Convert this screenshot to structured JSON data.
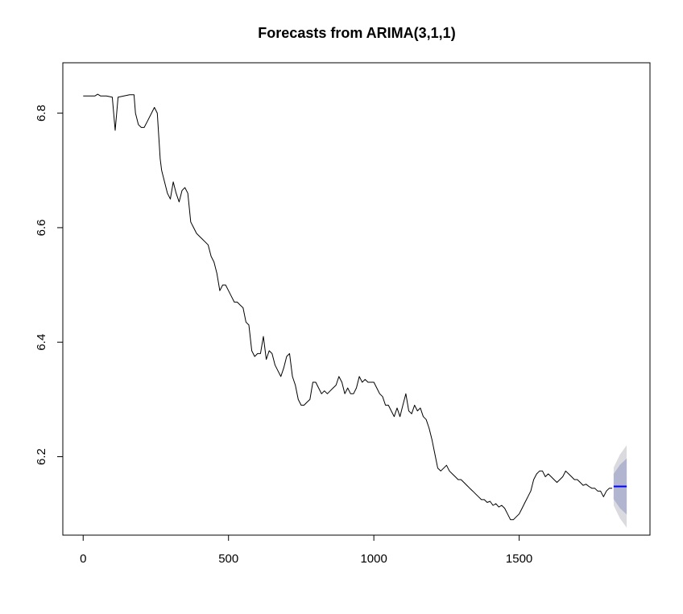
{
  "chart_data": {
    "type": "line",
    "title": "Forecasts from ARIMA(3,1,1)",
    "xlabel": "",
    "ylabel": "",
    "xlim": [
      -70,
      1950
    ],
    "ylim": [
      6.063,
      6.888
    ],
    "x_ticks": [
      0,
      500,
      1000,
      1500
    ],
    "x_tick_labels": [
      "0",
      "500",
      "1000",
      "1500"
    ],
    "y_ticks": [
      6.2,
      6.4,
      6.6,
      6.8
    ],
    "y_tick_labels": [
      "6.2",
      "6.4",
      "6.6",
      "6.8"
    ],
    "grid": false,
    "legend": "none",
    "series": [
      {
        "kind": "observed",
        "color": "#000000",
        "x": [
          0,
          20,
          40,
          50,
          60,
          70,
          80,
          100,
          110,
          120,
          140,
          160,
          175,
          180,
          190,
          200,
          210,
          220,
          235,
          245,
          255,
          260,
          265,
          270,
          280,
          290,
          300,
          310,
          320,
          330,
          340,
          350,
          360,
          370,
          380,
          390,
          400,
          410,
          420,
          430,
          440,
          450,
          460,
          470,
          480,
          490,
          500,
          510,
          520,
          530,
          540,
          550,
          560,
          570,
          580,
          590,
          600,
          610,
          620,
          630,
          640,
          650,
          660,
          670,
          680,
          690,
          700,
          710,
          720,
          730,
          740,
          750,
          760,
          770,
          780,
          790,
          800,
          810,
          820,
          830,
          840,
          850,
          860,
          870,
          880,
          890,
          900,
          910,
          920,
          930,
          940,
          950,
          960,
          970,
          980,
          990,
          1000,
          1010,
          1020,
          1030,
          1040,
          1050,
          1060,
          1070,
          1080,
          1090,
          1100,
          1110,
          1120,
          1130,
          1140,
          1150,
          1160,
          1170,
          1180,
          1190,
          1200,
          1210,
          1220,
          1230,
          1240,
          1250,
          1260,
          1270,
          1280,
          1290,
          1300,
          1310,
          1320,
          1330,
          1340,
          1350,
          1360,
          1370,
          1380,
          1390,
          1400,
          1410,
          1420,
          1430,
          1440,
          1450,
          1460,
          1470,
          1480,
          1490,
          1500,
          1510,
          1520,
          1530,
          1540,
          1550,
          1560,
          1570,
          1580,
          1590,
          1600,
          1610,
          1620,
          1630,
          1640,
          1650,
          1660,
          1670,
          1680,
          1690,
          1700,
          1710,
          1720,
          1730,
          1740,
          1750,
          1760,
          1770,
          1780,
          1790,
          1800,
          1810,
          1820
        ],
        "y": [
          6.83,
          6.83,
          6.83,
          6.833,
          6.83,
          6.83,
          6.83,
          6.828,
          6.77,
          6.828,
          6.83,
          6.832,
          6.832,
          6.8,
          6.78,
          6.775,
          6.775,
          6.785,
          6.8,
          6.81,
          6.8,
          6.76,
          6.72,
          6.7,
          6.68,
          6.66,
          6.65,
          6.68,
          6.66,
          6.645,
          6.665,
          6.67,
          6.66,
          6.61,
          6.6,
          6.59,
          6.585,
          6.58,
          6.575,
          6.57,
          6.55,
          6.54,
          6.52,
          6.49,
          6.5,
          6.5,
          6.49,
          6.48,
          6.47,
          6.47,
          6.465,
          6.46,
          6.435,
          6.43,
          6.385,
          6.375,
          6.38,
          6.38,
          6.41,
          6.37,
          6.385,
          6.38,
          6.36,
          6.35,
          6.34,
          6.355,
          6.375,
          6.38,
          6.34,
          6.325,
          6.3,
          6.29,
          6.29,
          6.295,
          6.3,
          6.33,
          6.33,
          6.32,
          6.31,
          6.315,
          6.31,
          6.315,
          6.32,
          6.325,
          6.34,
          6.33,
          6.31,
          6.32,
          6.31,
          6.31,
          6.32,
          6.34,
          6.33,
          6.335,
          6.33,
          6.33,
          6.33,
          6.32,
          6.31,
          6.305,
          6.29,
          6.29,
          6.28,
          6.27,
          6.285,
          6.27,
          6.29,
          6.31,
          6.28,
          6.275,
          6.29,
          6.28,
          6.285,
          6.27,
          6.265,
          6.25,
          6.23,
          6.205,
          6.18,
          6.175,
          6.18,
          6.185,
          6.175,
          6.17,
          6.165,
          6.16,
          6.16,
          6.155,
          6.15,
          6.145,
          6.14,
          6.135,
          6.13,
          6.125,
          6.125,
          6.12,
          6.122,
          6.115,
          6.118,
          6.112,
          6.115,
          6.11,
          6.1,
          6.09,
          6.09,
          6.095,
          6.1,
          6.11,
          6.12,
          6.13,
          6.14,
          6.16,
          6.17,
          6.175,
          6.175,
          6.165,
          6.17,
          6.165,
          6.16,
          6.155,
          6.16,
          6.165,
          6.175,
          6.17,
          6.165,
          6.16,
          6.16,
          6.155,
          6.15,
          6.152,
          6.148,
          6.145,
          6.145,
          6.14,
          6.14,
          6.13,
          6.14,
          6.145,
          6.145
        ]
      },
      {
        "kind": "point-forecast",
        "color": "#0000ff",
        "x": [
          1825,
          1870
        ],
        "y": [
          6.148,
          6.148
        ]
      }
    ],
    "intervals": [
      {
        "level": "95%",
        "color": "#dbdbdf",
        "x": [
          1825,
          1847,
          1870
        ],
        "lower": [
          6.115,
          6.092,
          6.076
        ],
        "upper": [
          6.181,
          6.204,
          6.22
        ]
      },
      {
        "level": "80%",
        "color": "#b1b5cf",
        "x": [
          1825,
          1847,
          1870
        ],
        "lower": [
          6.126,
          6.11,
          6.099
        ],
        "upper": [
          6.17,
          6.186,
          6.197
        ]
      }
    ]
  }
}
